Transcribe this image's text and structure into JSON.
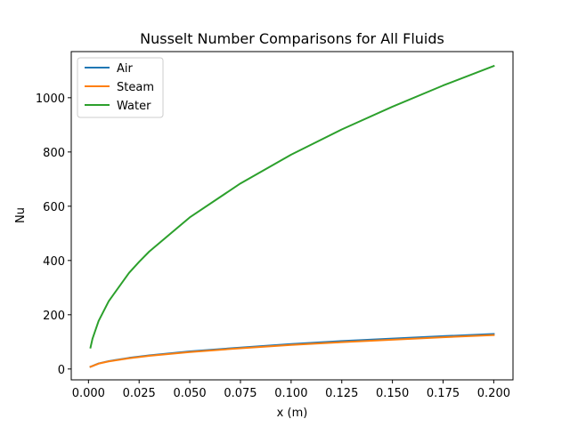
{
  "chart_data": {
    "type": "line",
    "title": "Nusselt Number Comparisons for All Fluids",
    "xlabel": "x (m)",
    "ylabel": "Nu",
    "xlim": [
      -0.0085,
      0.2095
    ],
    "ylim": [
      -40,
      1170
    ],
    "x_ticks": [
      0.0,
      0.025,
      0.05,
      0.075,
      0.1,
      0.125,
      0.15,
      0.175,
      0.2
    ],
    "x_tick_labels": [
      "0.000",
      "0.025",
      "0.050",
      "0.075",
      "0.100",
      "0.125",
      "0.150",
      "0.175",
      "0.200"
    ],
    "y_ticks": [
      0,
      200,
      400,
      600,
      800,
      1000
    ],
    "y_tick_labels": [
      "0",
      "200",
      "400",
      "600",
      "800",
      "1000"
    ],
    "grid": false,
    "legend_position": "upper-left",
    "series": [
      {
        "name": "Air",
        "color": "#1f77b4",
        "x": [
          0.001,
          0.005,
          0.01,
          0.02,
          0.03,
          0.05,
          0.075,
          0.1,
          0.125,
          0.15,
          0.175,
          0.2
        ],
        "y": [
          8,
          20.5,
          29,
          41,
          50,
          65,
          79,
          92,
          103,
          112,
          121,
          129
        ]
      },
      {
        "name": "Steam",
        "color": "#ff7f0e",
        "x": [
          0.001,
          0.005,
          0.01,
          0.02,
          0.03,
          0.05,
          0.075,
          0.1,
          0.125,
          0.15,
          0.175,
          0.2
        ],
        "y": [
          8,
          19.8,
          28,
          39.5,
          48.5,
          62.5,
          76.5,
          88.5,
          99,
          108,
          117,
          125
        ]
      },
      {
        "name": "Water",
        "color": "#2ca02c",
        "x": [
          0.001,
          0.002,
          0.005,
          0.01,
          0.02,
          0.025,
          0.03,
          0.05,
          0.075,
          0.1,
          0.125,
          0.15,
          0.175,
          0.2
        ],
        "y": [
          79,
          112,
          177,
          250,
          354,
          395,
          433,
          559,
          684,
          790,
          883,
          967,
          1045,
          1117
        ]
      }
    ]
  }
}
